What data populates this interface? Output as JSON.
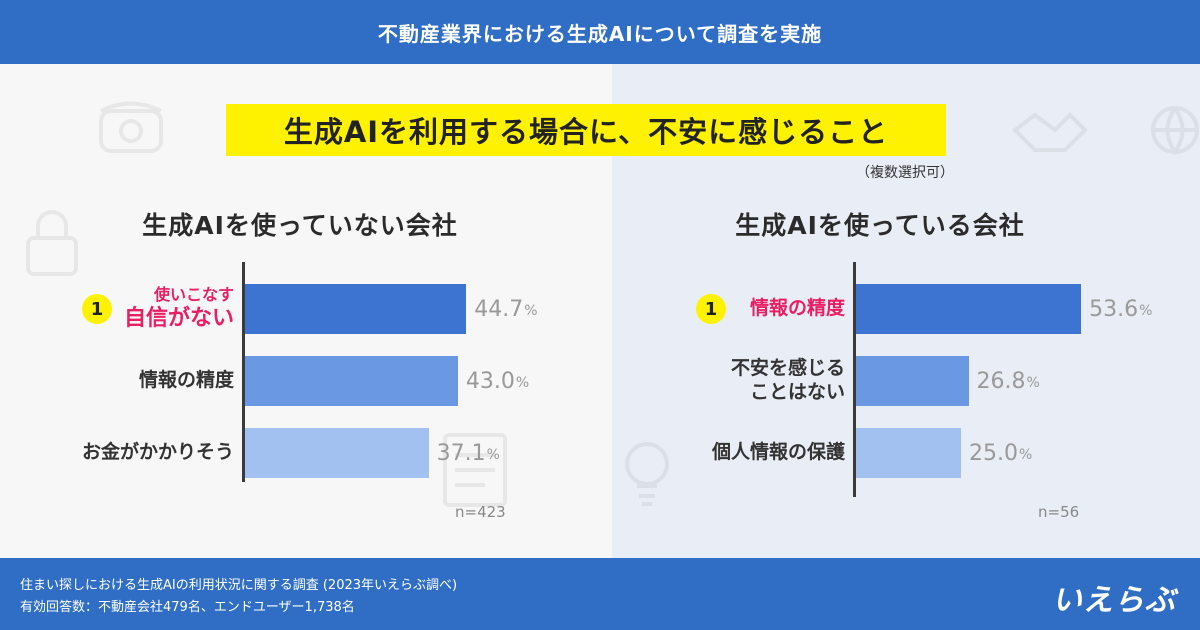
{
  "header": {
    "title": "不動産業界における生成AIについて調査を実施"
  },
  "main_title": "生成AIを利用する場合に、不安に感じること",
  "note": "（複数選択可）",
  "chart_data": [
    {
      "type": "bar",
      "orientation": "horizontal",
      "title": "生成AIを使っていない会社",
      "categories": [
        "使いこなす自信がない",
        "情報の精度",
        "お金がかかりそう"
      ],
      "category_lines": [
        [
          "使いこなす",
          "自信がない"
        ],
        [
          "情報の精度"
        ],
        [
          "お金がかかりそう"
        ]
      ],
      "values": [
        44.7,
        43.0,
        37.1
      ],
      "value_labels": [
        "44.7",
        "43.0",
        "37.1"
      ],
      "unit": "%",
      "rank_badge": "1",
      "n": "n=423",
      "colors": [
        "#3d74d1",
        "#6b98e3",
        "#a3c1f0"
      ],
      "highlight_color": "#e91e63"
    },
    {
      "type": "bar",
      "orientation": "horizontal",
      "title": "生成AIを使っている会社",
      "categories": [
        "情報の精度",
        "不安を感じることはない",
        "個人情報の保護"
      ],
      "category_lines": [
        [
          "情報の精度"
        ],
        [
          "不安を感じる",
          "ことはない"
        ],
        [
          "個人情報の保護"
        ]
      ],
      "values": [
        53.6,
        26.8,
        25.0
      ],
      "value_labels": [
        "53.6",
        "26.8",
        "25.0"
      ],
      "unit": "%",
      "rank_badge": "1",
      "n": "n=56",
      "colors": [
        "#3d74d1",
        "#6b98e3",
        "#a3c1f0"
      ],
      "highlight_color": "#e91e63"
    }
  ],
  "footer": {
    "line1": "住まい探しにおける生成AIの利用状況に関する調査 (2023年いえらぶ調べ)",
    "line2": "有効回答数：不動産会社479名、エンドユーザー1,738名"
  },
  "logo": "いえらぶ",
  "colors": {
    "header": "#2f6ec4",
    "title_highlight": "#fff200",
    "accent": "#e91e63"
  }
}
